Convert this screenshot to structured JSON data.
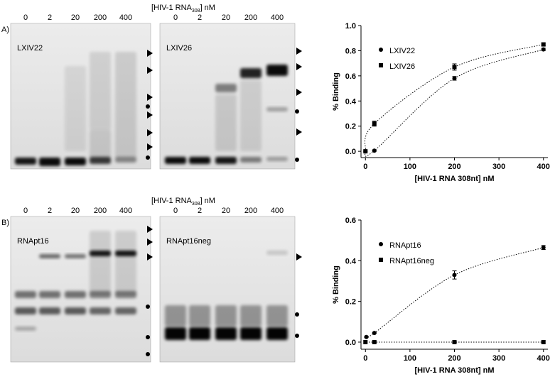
{
  "panels": [
    {
      "label": "A)",
      "header": {
        "prefix": "[HIV-1 RNA",
        "subscript": "308",
        "suffix": "] nM"
      },
      "lanes": [
        "0",
        "2",
        "20",
        "200",
        "400"
      ],
      "gels": [
        "LXIV22",
        "LXIV26"
      ]
    },
    {
      "label": "B)",
      "header": {
        "prefix": "[HIV-1 RNA",
        "subscript": "308",
        "suffix": "] nM"
      },
      "lanes": [
        "0",
        "2",
        "20",
        "200",
        "400"
      ],
      "gels": [
        "RNApt16",
        "RNApt16neg"
      ]
    }
  ],
  "chart_data": [
    {
      "type": "scatter",
      "x_label": "[HIV-1 RNA 308nt] nM",
      "y_label": "% Binding",
      "xlim": [
        -10,
        410
      ],
      "xticks": [
        0,
        100,
        200,
        300,
        400
      ],
      "ylim": [
        -0.05,
        1.0
      ],
      "yticks": [
        {
          "value": 0,
          "label": "0.0"
        },
        {
          "value": 0.2,
          "label": "0.2"
        },
        {
          "value": 0.4,
          "label": "0.4"
        },
        {
          "value": 0.6,
          "label": "0.6"
        },
        {
          "value": 0.8,
          "label": "0.8"
        },
        {
          "value": 1.0,
          "label": "1.0"
        }
      ],
      "series": [
        {
          "name": "LXIV22",
          "marker": "circle",
          "color": "#000000",
          "x": [
            0,
            20,
            200,
            400
          ],
          "values": [
            0,
            0.005,
            0.58,
            0.81
          ],
          "errors": [
            0,
            0.005,
            0.015,
            0.01
          ]
        },
        {
          "name": "LXIV26",
          "marker": "square",
          "color": "#000000",
          "x": [
            0,
            20,
            200,
            400
          ],
          "values": [
            0,
            0.22,
            0.67,
            0.85
          ],
          "errors": [
            0,
            0.02,
            0.025,
            0.01
          ]
        }
      ]
    },
    {
      "type": "scatter",
      "x_label": "[HIV-1 RNA 308nt] nM",
      "y_label": "% Binding",
      "xlim": [
        -10,
        410
      ],
      "xticks": [
        0,
        100,
        200,
        300,
        400
      ],
      "ylim": [
        -0.035,
        0.6
      ],
      "yticks": [
        {
          "value": 0,
          "label": "0.0"
        },
        {
          "value": 0.2,
          "label": "0.2"
        },
        {
          "value": 0.4,
          "label": "0.4"
        },
        {
          "value": 0.6,
          "label": "0.6"
        }
      ],
      "series": [
        {
          "name": "RNApt16",
          "marker": "circle",
          "color": "#000000",
          "x": [
            2,
            20,
            200,
            400
          ],
          "values": [
            0.025,
            0.045,
            0.33,
            0.465
          ],
          "errors": [
            0.003,
            0.003,
            0.02,
            0.01
          ]
        },
        {
          "name": "RNApt16neg",
          "marker": "square",
          "color": "#000000",
          "x": [
            0,
            20,
            200,
            400
          ],
          "values": [
            0,
            0,
            0,
            0
          ],
          "errors": [
            0,
            0,
            0,
            0
          ]
        }
      ]
    }
  ]
}
